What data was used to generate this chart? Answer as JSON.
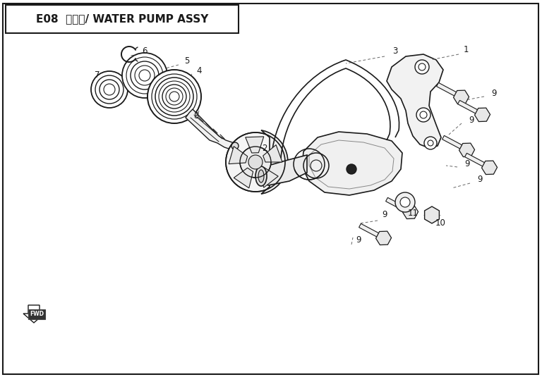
{
  "title": "E08  水泵组/ WATER PUMP ASSY",
  "bg": "#ffffff",
  "lc": "#1a1a1a",
  "title_fs": 11,
  "label_fs": 8.5,
  "fig_w": 7.68,
  "fig_h": 5.35,
  "dpi": 100
}
